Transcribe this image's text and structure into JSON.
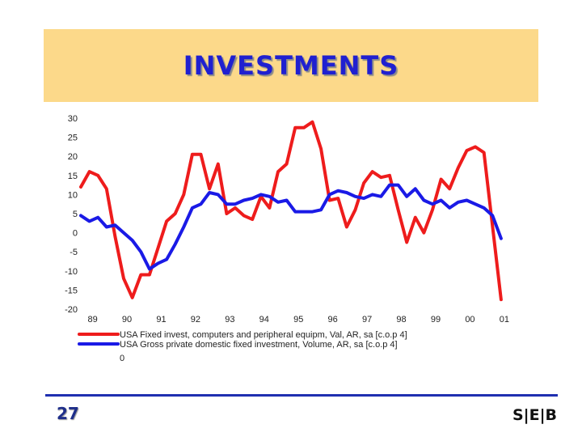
{
  "slide": {
    "title": "INVESTMENTS",
    "page_number": "27",
    "logo_text": "S|E|B"
  },
  "colors": {
    "title_band": "#fcd98a",
    "title_text": "#2020d0",
    "footer_rule": "#1f2fb0"
  },
  "chart_data": {
    "type": "line",
    "title": "",
    "xlabel": "",
    "ylabel": "",
    "xlim": [
      88.75,
      101.05
    ],
    "ylim": [
      -20,
      30
    ],
    "y_ticks": [
      "30",
      "25",
      "20",
      "15",
      "10",
      "5",
      "0",
      "-5",
      "-10",
      "-15",
      "-20"
    ],
    "x_ticks": [
      "89",
      "90",
      "91",
      "92",
      "93",
      "94",
      "95",
      "96",
      "97",
      "98",
      "99",
      "00",
      "01"
    ],
    "grid": false,
    "legend_position": "bottom-left",
    "extra_legend_label": "0",
    "series": [
      {
        "name": "USA Fixed invest, computers and peripheral equipm, Val, AR, sa [c.o.p 4]",
        "color": "#ee1c1c",
        "x": [
          88.75,
          89.0,
          89.25,
          89.5,
          89.75,
          90.0,
          90.25,
          90.5,
          90.75,
          91.0,
          91.25,
          91.5,
          91.75,
          92.0,
          92.25,
          92.5,
          92.75,
          93.0,
          93.25,
          93.5,
          93.75,
          94.0,
          94.25,
          94.5,
          94.75,
          95.0,
          95.25,
          95.5,
          95.75,
          96.0,
          96.25,
          96.5,
          96.75,
          97.0,
          97.25,
          97.5,
          97.75,
          98.0,
          98.25,
          98.5,
          98.75,
          99.0,
          99.25,
          99.5,
          99.75,
          100.0,
          100.25,
          100.5,
          101.0
        ],
        "values": [
          12,
          16,
          15,
          11.5,
          -1,
          -12,
          -17,
          -11,
          -11,
          -4,
          3,
          5,
          10,
          20.5,
          20.5,
          11.5,
          18,
          5,
          6.5,
          4.5,
          3.5,
          9.5,
          6.5,
          16,
          18,
          27.5,
          27.5,
          29,
          22,
          8.5,
          9,
          1.5,
          6,
          13,
          16,
          14.5,
          15,
          6,
          -2.5,
          4,
          0,
          6,
          14,
          11.5,
          17,
          21.5,
          22.5,
          21,
          -17.5
        ]
      },
      {
        "name": "USA Gross private domestic fixed investment, Volume, AR, sa [c.o.p 4]",
        "color": "#1a1ae6",
        "x": [
          88.75,
          89.0,
          89.25,
          89.5,
          89.75,
          90.0,
          90.25,
          90.5,
          90.75,
          91.0,
          91.25,
          91.5,
          91.75,
          92.0,
          92.25,
          92.5,
          92.75,
          93.0,
          93.25,
          93.5,
          93.75,
          94.0,
          94.25,
          94.5,
          94.75,
          95.0,
          95.25,
          95.5,
          95.75,
          96.0,
          96.25,
          96.5,
          96.75,
          97.0,
          97.25,
          97.5,
          97.75,
          98.0,
          98.25,
          98.5,
          98.75,
          99.0,
          99.25,
          99.5,
          99.75,
          100.0,
          100.25,
          100.5,
          100.75,
          101.0
        ],
        "values": [
          4.5,
          3,
          4,
          1.5,
          2,
          0,
          -2,
          -5,
          -9.5,
          -8,
          -7,
          -3,
          1.5,
          6.5,
          7.5,
          10.5,
          10,
          7.5,
          7.5,
          8.5,
          9,
          10,
          9.5,
          8,
          8.5,
          5.5,
          5.5,
          5.5,
          6,
          10,
          11,
          10.5,
          9.5,
          9,
          10,
          9.5,
          12.5,
          12.5,
          9.5,
          11.5,
          8.5,
          7.5,
          8.5,
          6.5,
          8,
          8.5,
          7.5,
          6.5,
          4.5,
          -1.5
        ]
      }
    ]
  }
}
